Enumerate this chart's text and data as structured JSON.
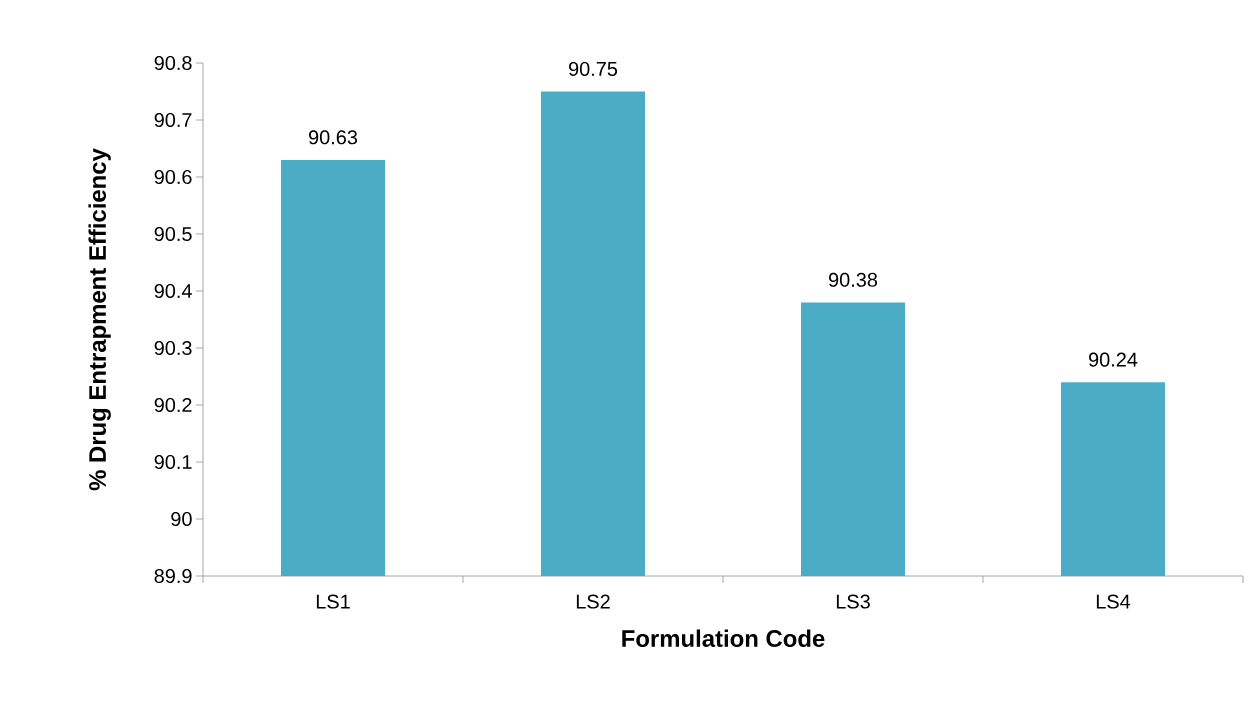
{
  "chart_data": {
    "type": "bar",
    "xlabel": "Formulation Code",
    "ylabel": "% Drug Entrapment Efficiency",
    "categories": [
      "LS1",
      "LS2",
      "LS3",
      "LS4"
    ],
    "values": [
      90.63,
      90.75,
      90.38,
      90.24
    ],
    "color": "#4bacc6",
    "ylim": [
      89.9,
      90.8
    ],
    "yticks": [
      89.9,
      90,
      90.1,
      90.2,
      90.3,
      90.4,
      90.5,
      90.6,
      90.7,
      90.8
    ],
    "data_labels": true
  }
}
